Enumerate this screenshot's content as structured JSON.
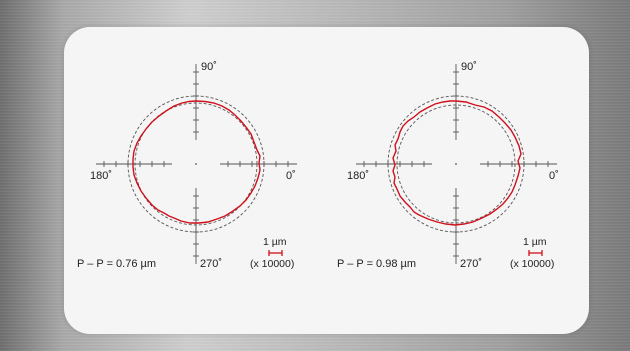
{
  "plots": [
    {
      "label_90": "90˚",
      "label_180": "180˚",
      "label_0": "0˚",
      "label_270": "270˚",
      "pp_text": "P – P = 0.76 µm",
      "scale_unit": "1 µm",
      "scale_factor": "(x 10000)",
      "profile_color": "#d0101a"
    },
    {
      "label_90": "90˚",
      "label_180": "180˚",
      "label_0": "0˚",
      "label_270": "270˚",
      "pp_text": "P – P = 0.98 µm",
      "scale_unit": "1 µm",
      "scale_factor": "(x 10000)",
      "profile_color": "#d0101a"
    }
  ]
}
